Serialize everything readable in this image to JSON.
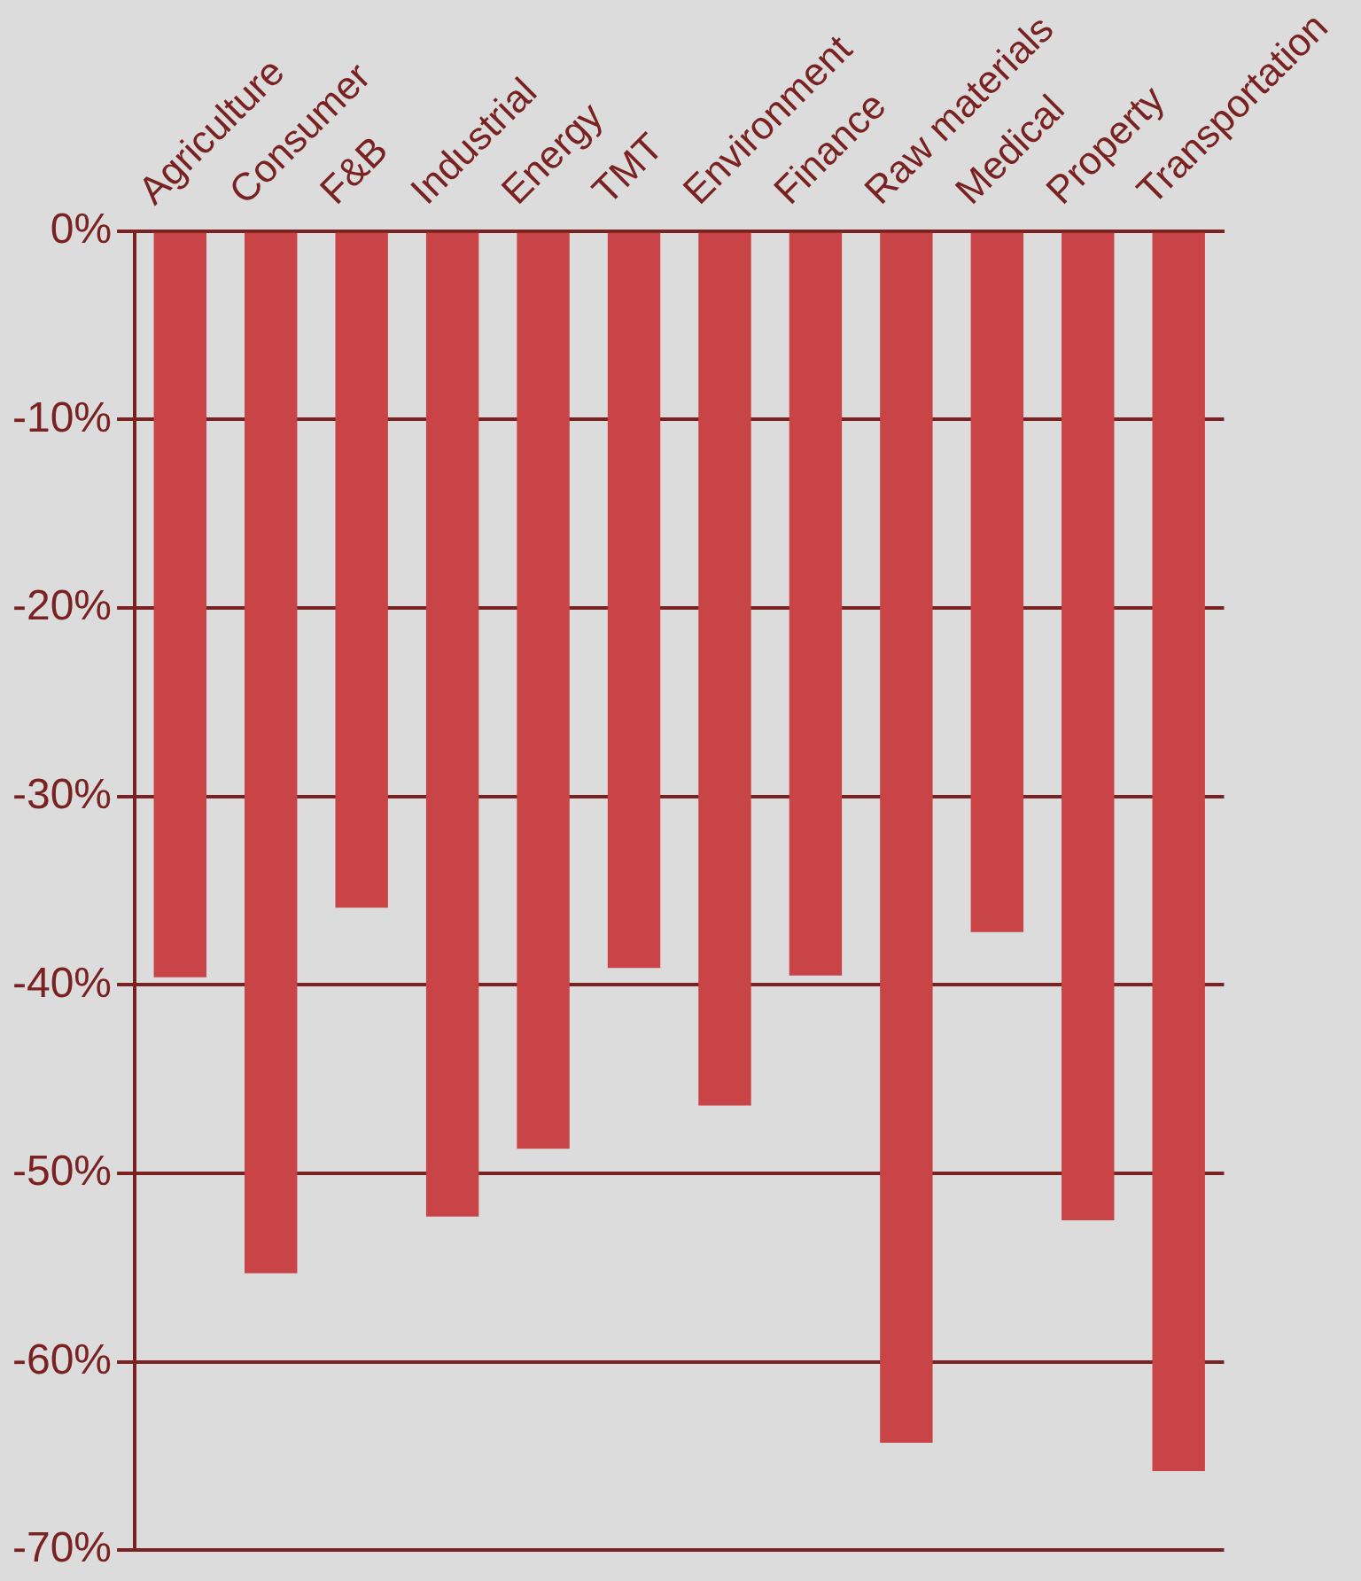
{
  "chart_data": {
    "type": "bar",
    "categories": [
      "Agriculture",
      "Consumer",
      "F&B",
      "Industrial",
      "Energy",
      "TMT",
      "Environment",
      "Finance",
      "Raw materials",
      "Medical",
      "Property",
      "Transportation"
    ],
    "values": [
      -39.6,
      -55.3,
      -35.9,
      -52.3,
      -48.7,
      -39.1,
      -46.4,
      -39.5,
      -64.3,
      -37.2,
      -52.5,
      -65.8
    ],
    "color": "#c94446",
    "ylim": [
      -70,
      0
    ],
    "yticks": [
      {
        "value": 0,
        "label": "0%"
      },
      {
        "value": -10,
        "label": "-10%"
      },
      {
        "value": -20,
        "label": "-20%"
      },
      {
        "value": -30,
        "label": "-30%"
      },
      {
        "value": -40,
        "label": "-40%"
      },
      {
        "value": -50,
        "label": "-50%"
      },
      {
        "value": -60,
        "label": "-60%"
      },
      {
        "value": -70,
        "label": "-70%"
      }
    ],
    "grid": "y",
    "legend": false
  }
}
